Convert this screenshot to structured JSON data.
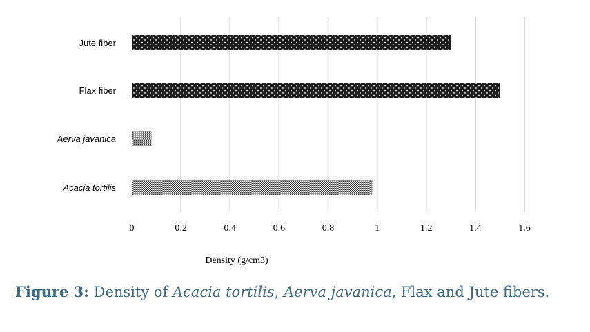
{
  "chart_data": {
    "type": "bar",
    "orientation": "horizontal",
    "categories": [
      "Jute fiber",
      "Flax fiber",
      "Aerva javanica",
      "Acacia tortilis"
    ],
    "italic_categories": [
      false,
      false,
      true,
      true
    ],
    "values": [
      1.3,
      1.5,
      0.08,
      0.98
    ],
    "bar_fill": [
      "dotted-dark",
      "dotted-dark",
      "checker",
      "checker"
    ],
    "xlabel": "Density (g/cm3)",
    "xlim": [
      0,
      1.6
    ],
    "ticks": [
      0,
      0.2,
      0.4,
      0.6,
      0.8,
      1,
      1.2,
      1.4,
      1.6
    ],
    "tick_labels": [
      "0",
      "0.2",
      "0.4",
      "0.6",
      "0.8",
      "1",
      "1.2",
      "1.4",
      "1.6"
    ],
    "grid": "vertical",
    "colors": {
      "dark_bar": "#1e1e1e",
      "grid": "#c8c8c8",
      "caption": "#3d6a82"
    }
  },
  "caption": {
    "label": "Figure 3:",
    "text_1": "Density of ",
    "species_1": "Acacia tortilis",
    "text_2": ", ",
    "species_2": "Aerva javanica",
    "text_3": ", Flax and Jute fibers."
  }
}
